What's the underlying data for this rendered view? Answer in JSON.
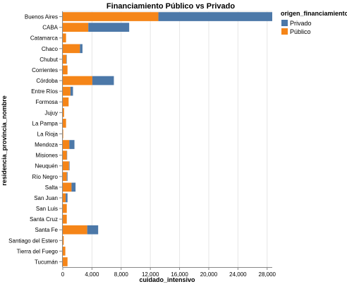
{
  "chart_data": {
    "type": "bar",
    "orientation": "horizontal",
    "stacked": true,
    "title": "Financiamiento Público vs Privado",
    "xlabel": "cuidado_intensivo",
    "ylabel": "residencia_provincia_nombre",
    "xlim": [
      0,
      28700
    ],
    "xticks": [
      0,
      4000,
      8000,
      12000,
      16000,
      20000,
      24000,
      28000
    ],
    "xtick_labels": [
      "0",
      "4,000",
      "8,000",
      "12,000",
      "16,000",
      "20,000",
      "24,000",
      "28,000"
    ],
    "grid": true,
    "legend_position": "top-right",
    "legend_title": "origen_financiamiento",
    "categories": [
      "Buenos Aires",
      "CABA",
      "Catamarca",
      "Chaco",
      "Chubut",
      "Corrientes",
      "Córdoba",
      "Entre Ríos",
      "Formosa",
      "Jujuy",
      "La Pampa",
      "La Rioja",
      "Mendoza",
      "Misiones",
      "Neuquén",
      "Río Negro",
      "Salta",
      "San Juan",
      "San Luis",
      "Santa Cruz",
      "Santa Fe",
      "Santiago del Estero",
      "Tierra del Fuego",
      "Tucumán"
    ],
    "series": [
      {
        "name": "Público",
        "color": "#f58518",
        "values": [
          13100,
          3500,
          450,
          2350,
          500,
          650,
          4050,
          1050,
          800,
          180,
          450,
          60,
          900,
          550,
          850,
          550,
          1200,
          400,
          550,
          550,
          3350,
          130,
          350,
          650
        ]
      },
      {
        "name": "Privado",
        "color": "#4c78a8",
        "values": [
          15600,
          5600,
          0,
          350,
          50,
          0,
          2950,
          350,
          0,
          0,
          0,
          0,
          700,
          50,
          80,
          100,
          550,
          250,
          0,
          0,
          1500,
          0,
          0,
          0
        ]
      }
    ]
  },
  "legend": {
    "title": "origen_financiamiento",
    "items": [
      {
        "label": "Privado",
        "color": "#4c78a8"
      },
      {
        "label": "Público",
        "color": "#f58518"
      }
    ]
  }
}
